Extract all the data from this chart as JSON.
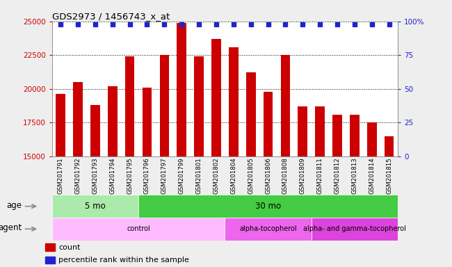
{
  "title": "GDS2973 / 1456743_x_at",
  "samples": [
    "GSM201791",
    "GSM201792",
    "GSM201793",
    "GSM201794",
    "GSM201795",
    "GSM201796",
    "GSM201797",
    "GSM201799",
    "GSM201801",
    "GSM201802",
    "GSM201804",
    "GSM201805",
    "GSM201806",
    "GSM201808",
    "GSM201809",
    "GSM201811",
    "GSM201812",
    "GSM201813",
    "GSM201814",
    "GSM201815"
  ],
  "counts": [
    19600,
    20500,
    18800,
    20200,
    22400,
    20100,
    22500,
    24900,
    22400,
    23700,
    23100,
    21200,
    19800,
    22500,
    18700,
    18700,
    18100,
    18100,
    17500,
    16500
  ],
  "bar_color": "#cc0000",
  "percentile_color": "#2222cc",
  "ylim_left": [
    15000,
    25000
  ],
  "ylim_right": [
    0,
    100
  ],
  "yticks_left": [
    15000,
    17500,
    20000,
    22500,
    25000
  ],
  "yticks_right": [
    0,
    25,
    50,
    75,
    100
  ],
  "grid_values": [
    17500,
    20000,
    22500
  ],
  "age_groups": [
    {
      "label": "5 mo",
      "start": 0,
      "end": 5,
      "color": "#aaeaaa"
    },
    {
      "label": "30 mo",
      "start": 5,
      "end": 20,
      "color": "#44cc44"
    }
  ],
  "agent_groups": [
    {
      "label": "control",
      "start": 0,
      "end": 10,
      "color": "#ffbbff"
    },
    {
      "label": "alpha-tocopherol",
      "start": 10,
      "end": 15,
      "color": "#ee66ee"
    },
    {
      "label": "alpha- and gamma-tocopherol",
      "start": 15,
      "end": 20,
      "color": "#dd44dd"
    }
  ],
  "legend_count_color": "#cc0000",
  "legend_percentile_color": "#2222cc",
  "fig_bg": "#eeeeee",
  "plot_bg": "#ffffff",
  "xtick_bg": "#dddddd"
}
